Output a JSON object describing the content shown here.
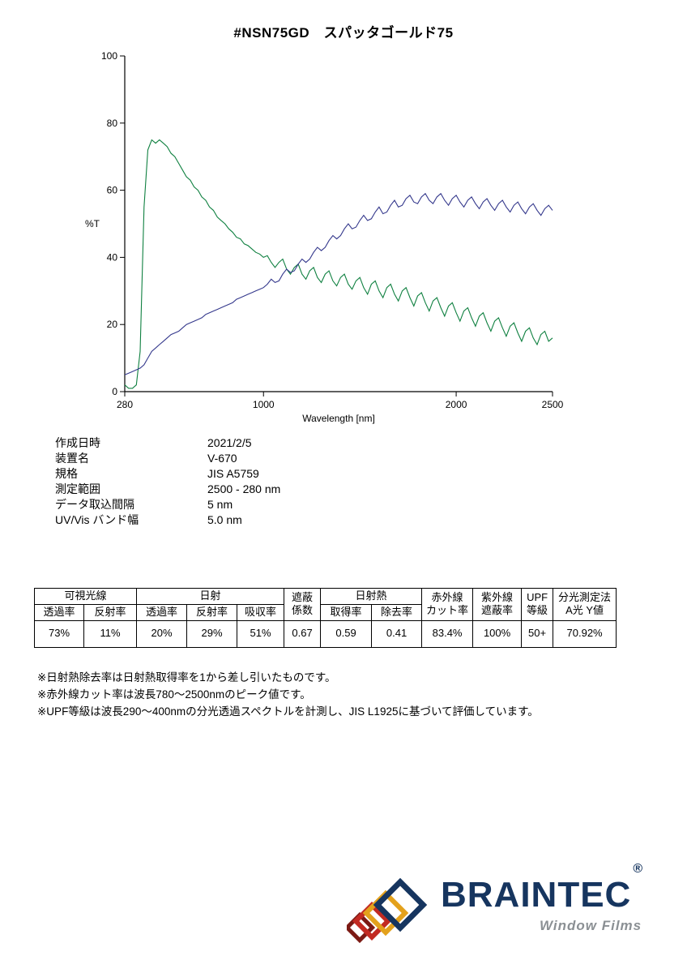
{
  "title": "#NSN75GD　スパッタゴールド75",
  "chart_data": {
    "type": "line",
    "title": "",
    "xlabel": "Wavelength [nm]",
    "ylabel": "%T",
    "xlim": [
      280,
      2500
    ],
    "ylim": [
      0,
      100
    ],
    "x_ticks": [
      280,
      1000,
      2000,
      2500
    ],
    "y_ticks": [
      0,
      20,
      40,
      60,
      80,
      100
    ],
    "grid": false,
    "legend": "none",
    "x": [
      280,
      300,
      320,
      340,
      360,
      380,
      400,
      420,
      440,
      460,
      480,
      500,
      520,
      540,
      560,
      580,
      600,
      620,
      640,
      660,
      680,
      700,
      720,
      740,
      760,
      780,
      800,
      820,
      840,
      860,
      880,
      900,
      920,
      940,
      960,
      980,
      1000,
      1020,
      1040,
      1060,
      1080,
      1100,
      1120,
      1140,
      1160,
      1180,
      1200,
      1220,
      1240,
      1260,
      1280,
      1300,
      1320,
      1340,
      1360,
      1380,
      1400,
      1420,
      1440,
      1460,
      1480,
      1500,
      1520,
      1540,
      1560,
      1580,
      1600,
      1620,
      1640,
      1660,
      1680,
      1700,
      1720,
      1740,
      1760,
      1780,
      1800,
      1820,
      1840,
      1860,
      1880,
      1900,
      1920,
      1940,
      1960,
      1980,
      2000,
      2020,
      2040,
      2060,
      2080,
      2100,
      2120,
      2140,
      2160,
      2180,
      2200,
      2220,
      2240,
      2260,
      2280,
      2300,
      2320,
      2340,
      2360,
      2380,
      2400,
      2420,
      2440,
      2460,
      2480,
      2500
    ],
    "series": [
      {
        "name": "green-curve",
        "color": "#0f8040",
        "values": [
          2,
          1,
          1,
          2,
          12,
          55,
          72,
          75,
          74,
          75,
          74,
          73,
          71,
          70,
          68,
          66,
          64,
          63,
          61,
          60,
          58,
          57,
          55,
          54,
          52,
          51,
          50,
          48.5,
          47.5,
          46,
          45.5,
          44,
          43.5,
          42.5,
          41.5,
          41,
          40,
          40.5,
          38.5,
          37,
          38.5,
          39.5,
          36.5,
          35,
          37,
          38,
          35,
          33.5,
          36,
          37,
          34,
          32.5,
          35,
          36,
          33,
          31.5,
          34,
          35,
          32,
          30.5,
          33,
          34,
          31,
          29,
          32,
          33,
          30,
          28,
          31,
          32,
          29,
          27,
          30,
          31,
          28,
          25.5,
          28.5,
          29.5,
          26.5,
          24,
          27,
          28,
          25,
          22.5,
          25.5,
          26.5,
          23.5,
          21,
          24,
          25,
          22,
          19.5,
          22.5,
          23.5,
          20.5,
          18,
          21,
          22,
          19,
          16.5,
          19.5,
          20.5,
          17.5,
          15,
          18,
          19,
          16,
          14,
          17,
          18,
          15,
          16
        ]
      },
      {
        "name": "navy-curve",
        "color": "#34388c",
        "values": [
          5,
          5.5,
          6,
          6.5,
          7,
          8,
          10,
          12,
          13,
          14,
          15,
          16,
          17,
          17.5,
          18,
          19,
          20,
          20.5,
          21,
          21.5,
          22,
          23,
          23.5,
          24,
          24.5,
          25,
          25.5,
          26,
          26.5,
          27.5,
          28,
          28.5,
          29,
          29.5,
          30,
          30.5,
          31,
          32,
          33.5,
          32.5,
          33,
          35,
          36.5,
          35.5,
          36,
          38,
          39.5,
          38.5,
          39.5,
          41.5,
          43,
          42,
          43,
          45,
          46.5,
          45.5,
          46.5,
          48.5,
          50,
          48.5,
          49,
          51,
          52.5,
          51,
          51.5,
          53.5,
          55,
          53,
          53.5,
          55.5,
          57,
          55,
          55.5,
          57.5,
          58.5,
          56.5,
          56,
          58,
          59,
          57,
          56,
          58,
          59,
          57,
          55.5,
          57.5,
          58.5,
          56.5,
          55,
          57,
          58,
          56,
          54.5,
          56.5,
          57.5,
          55.5,
          54,
          56,
          57,
          55,
          53.5,
          55.5,
          56.5,
          54.5,
          53,
          55,
          56,
          54,
          52.5,
          54.5,
          55.5,
          54
        ]
      }
    ]
  },
  "metadata": {
    "rows": [
      {
        "label": "作成日時",
        "value": "2021/2/5"
      },
      {
        "label": "装置名",
        "value": "V-670"
      },
      {
        "label": "規格",
        "value": "JIS A5759"
      },
      {
        "label": "測定範囲",
        "value": "2500 - 280 nm"
      },
      {
        "label": "データ取込間隔",
        "value": "5 nm"
      },
      {
        "label": "UV/Vis バンド幅",
        "value": "5.0 nm"
      }
    ]
  },
  "table": {
    "groups": {
      "visible_light": "可視光線",
      "solar": "日射",
      "shading": [
        "遮蔽",
        "係数"
      ],
      "solar_heat": "日射熱",
      "infrared": [
        "赤外線",
        "カット率"
      ],
      "ultraviolet": [
        "紫外線",
        "遮蔽率"
      ],
      "upf": [
        "UPF",
        "等級"
      ],
      "spectro": [
        "分光測定法",
        "A光 Y値"
      ]
    },
    "sub_headers": [
      "透過率",
      "反射率",
      "透過率",
      "反射率",
      "吸収率",
      "取得率",
      "除去率"
    ],
    "values": [
      "73%",
      "11%",
      "20%",
      "29%",
      "51%",
      "0.67",
      "0.59",
      "0.41",
      "83.4%",
      "100%",
      "50+",
      "70.92%"
    ]
  },
  "notes": [
    "※日射熱除去率は日射熱取得率を1から差し引いたものです。",
    "※赤外線カット率は波長780～2500nmのピーク値です。",
    "※UPF等級は波長290～400nmの分光透過スペクトルを計測し、JIS L1925に基づいて評価しています。"
  ],
  "logo": {
    "brand": "BRAINTEC",
    "registered": "®",
    "tagline": "Window Films"
  },
  "colors": {
    "green_curve": "#0f8040",
    "navy_curve": "#34388c",
    "brand_navy": "#16355f",
    "brand_red": "#c22a22",
    "brand_yellow": "#e3a11c",
    "brand_dark_red": "#7c1a14",
    "tagline_gray": "#8b9094"
  }
}
